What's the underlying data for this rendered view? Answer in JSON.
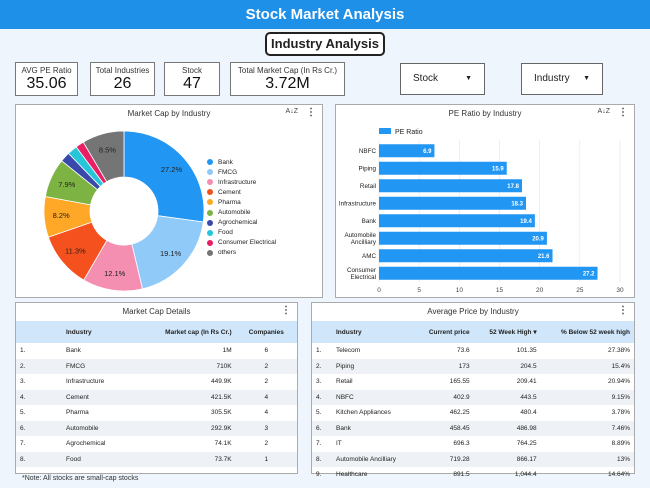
{
  "header": {
    "title": "Stock Market Analysis",
    "subtitle": "Industry Analysis"
  },
  "kpis": [
    {
      "label": "AVG PE Ratio",
      "value": "35.06"
    },
    {
      "label": "Total Industries",
      "value": "26"
    },
    {
      "label": "Stock",
      "value": "47"
    },
    {
      "label": "Total Market Cap (In Rs Cr.)",
      "value": "3.72M"
    }
  ],
  "filters": {
    "stock": "Stock",
    "industry": "Industry"
  },
  "icons": {
    "menu": "more-vertical-icon",
    "sort": "sort-az-icon",
    "dropdown": "caret-down-icon"
  },
  "panels": {
    "pie_title": "Market Cap by Industry",
    "bar_title": "PE Ratio by Industry",
    "cap_table_title": "Market Cap Details",
    "price_table_title": "Average Price by Industry"
  },
  "sort_glyph": "A↓Z",
  "menu_glyph": "⋮",
  "chart_data": [
    {
      "type": "pie",
      "title": "Market Cap by Industry",
      "categories": [
        "Bank",
        "FMCG",
        "Infrastructure",
        "Cement",
        "Pharma",
        "Automobile",
        "Agrochemical",
        "Food",
        "Consumer Electrical",
        "others"
      ],
      "values": [
        27.2,
        19.1,
        12.1,
        11.3,
        8.2,
        7.9,
        2.0,
        2.0,
        1.7,
        8.5
      ],
      "labels": [
        "27.2%",
        "19.1%",
        "12.1%",
        "11.3%",
        "8.2%",
        "7.9%",
        "",
        "",
        "",
        "8.5%"
      ],
      "colors": [
        "#2196f3",
        "#90caf9",
        "#f48fb1",
        "#f4511e",
        "#ffa726",
        "#7cb342",
        "#3949ab",
        "#26c6da",
        "#e91e63",
        "#757575"
      ],
      "legend": "right"
    },
    {
      "type": "bar",
      "orientation": "horizontal",
      "title": "PE Ratio by Industry",
      "categories": [
        "NBFC",
        "Piping",
        "Retail",
        "Infrastructure",
        "Bank",
        "Automobile Ancilliary",
        "AMC",
        "Consumer Electrical"
      ],
      "series": [
        {
          "name": "PE Ratio",
          "values": [
            6.9,
            15.9,
            17.8,
            18.3,
            19.4,
            20.9,
            21.6,
            27.2
          ]
        }
      ],
      "xlim": [
        0,
        30
      ],
      "xticks": [
        "0",
        "5",
        "10",
        "15",
        "20",
        "25",
        "30"
      ],
      "color": "#2196f3",
      "legend": "top-left"
    }
  ],
  "cap_table": {
    "columns": [
      "Industry",
      "Market cap (In Rs Cr.)",
      "Companies"
    ],
    "rows": [
      [
        "1.",
        "Bank",
        "1M",
        "6"
      ],
      [
        "2.",
        "FMCG",
        "710K",
        "2"
      ],
      [
        "3.",
        "Infrastructure",
        "449.9K",
        "2"
      ],
      [
        "4.",
        "Cement",
        "421.5K",
        "4"
      ],
      [
        "5.",
        "Pharma",
        "305.5K",
        "4"
      ],
      [
        "6.",
        "Automobile",
        "292.9K",
        "3"
      ],
      [
        "7.",
        "Agrochemical",
        "74.1K",
        "2"
      ],
      [
        "8.",
        "Food",
        "73.7K",
        "1"
      ]
    ]
  },
  "price_table": {
    "columns": [
      "Industry",
      "Current price",
      "52 Week High ▾",
      "% Below 52 week high"
    ],
    "rows": [
      [
        "1.",
        "Telecom",
        "73.6",
        "101.35",
        "27.38%"
      ],
      [
        "2.",
        "Piping",
        "173",
        "204.5",
        "15.4%"
      ],
      [
        "3.",
        "Retail",
        "165.55",
        "209.41",
        "20.94%"
      ],
      [
        "4.",
        "NBFC",
        "402.9",
        "443.5",
        "9.15%"
      ],
      [
        "5.",
        "Kitchen Appliances",
        "462.25",
        "480.4",
        "3.78%"
      ],
      [
        "6.",
        "Bank",
        "458.45",
        "486.98",
        "7.46%"
      ],
      [
        "7.",
        "IT",
        "696.3",
        "764.25",
        "8.89%"
      ],
      [
        "8.",
        "Automobile Ancilliary",
        "719.28",
        "866.17",
        "13%"
      ],
      [
        "9.",
        "Healthcare",
        "891.5",
        "1,044.4",
        "14.64%"
      ]
    ]
  },
  "footnote": "*Note: All stocks are small-cap stocks"
}
